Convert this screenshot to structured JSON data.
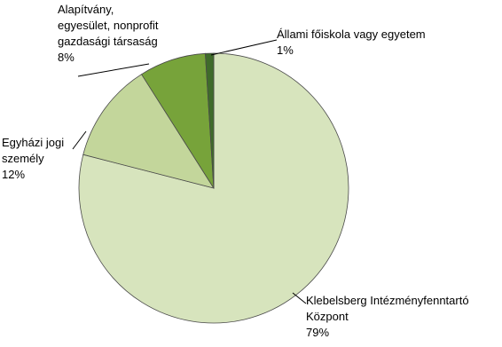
{
  "chart_data": {
    "type": "pie",
    "categories": [
      "Klebelsberg Intézményfenntartó Központ",
      "Egyházi jogi személy",
      "Alapítvány, egyesület, nonprofit gazdasági társaság",
      "Állami főiskola vagy egyetem"
    ],
    "values": [
      79,
      12,
      8,
      1
    ],
    "value_labels": [
      "79%",
      "12%",
      "8%",
      "1%"
    ],
    "colors": [
      "#d7e4bd",
      "#c3d69b",
      "#77a33a",
      "#3f6b2a"
    ]
  }
}
